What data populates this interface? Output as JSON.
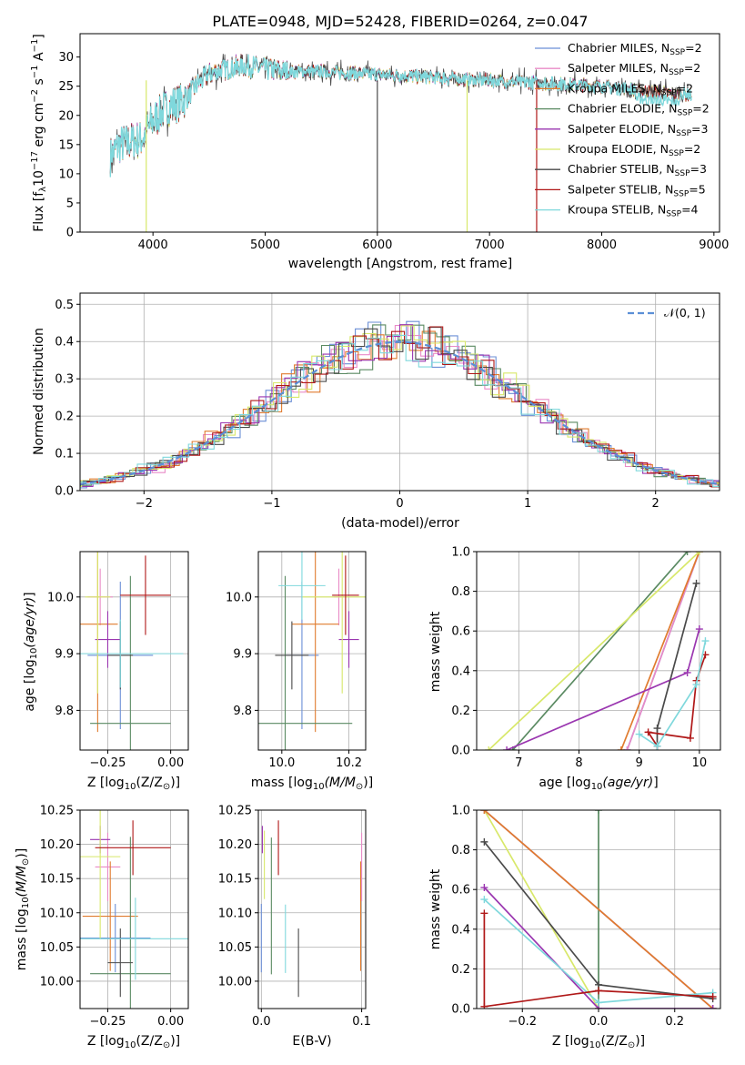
{
  "series_colors": [
    "#6b8fd6",
    "#e98bc7",
    "#e07b2e",
    "#5a8a62",
    "#9a36b0",
    "#d8e86a",
    "#4a4a4a",
    "#b01818",
    "#7fd8dc"
  ],
  "chart_data": [
    {
      "id": "spectrum",
      "type": "line",
      "title": "PLATE=0948, MJD=52428, FIBERID=0264, z=0.047",
      "xlabel": "wavelength [Angstrom, rest frame]",
      "ylabel": "Flux [f_λ 10^-17 erg cm^-2 s^-1 A^-1]",
      "xlim": [
        3350,
        9050
      ],
      "ylim": [
        0,
        34
      ],
      "xticks": [
        "4000",
        "5000",
        "6000",
        "7000",
        "8000",
        "9000"
      ],
      "yticks": [
        "0",
        "5",
        "10",
        "15",
        "20",
        "25",
        "30"
      ],
      "grid": false,
      "legend_position": "top-right",
      "legend": [
        {
          "label": "Chabrier MILES, N",
          "sub": "SSP",
          "tail": "=2"
        },
        {
          "label": "Salpeter MILES, N",
          "sub": "SSP",
          "tail": "=2"
        },
        {
          "label": "Kroupa MILES, N",
          "sub": "SSP",
          "tail": "=2"
        },
        {
          "label": "Chabrier ELODIE, N",
          "sub": "SSP",
          "tail": "=2"
        },
        {
          "label": "Salpeter ELODIE, N",
          "sub": "SSP",
          "tail": "=3"
        },
        {
          "label": "Kroupa ELODIE, N",
          "sub": "SSP",
          "tail": "=2"
        },
        {
          "label": "Chabrier STELIB, N",
          "sub": "SSP",
          "tail": "=3"
        },
        {
          "label": "Salpeter STELIB, N",
          "sub": "SSP",
          "tail": "=5"
        },
        {
          "label": "Kroupa STELIB, N",
          "sub": "SSP",
          "tail": "=4"
        }
      ],
      "continuum": {
        "x": [
          3620,
          3700,
          3800,
          3900,
          4000,
          4100,
          4200,
          4300,
          4400,
          4500,
          4600,
          4800,
          5000,
          5200,
          5500,
          6000,
          6500,
          7000,
          7500,
          8000,
          8500,
          8800
        ],
        "y": [
          13,
          15,
          15.5,
          16,
          19,
          21,
          22,
          23,
          25.5,
          27,
          27.8,
          28.5,
          28,
          27.5,
          27.5,
          27,
          26.5,
          26,
          25.5,
          25,
          24,
          23.5
        ]
      }
    },
    {
      "id": "residual-histogram",
      "type": "histogram",
      "xlabel": "(data-model)/error",
      "ylabel": "Normed distribution",
      "xlim": [
        -2.5,
        2.5
      ],
      "ylim": [
        0,
        0.53
      ],
      "xticks": [
        "-2",
        "-1",
        "0",
        "1",
        "2"
      ],
      "yticks": [
        "0.0",
        "0.1",
        "0.2",
        "0.3",
        "0.4",
        "0.5"
      ],
      "grid": true,
      "legend": [
        "N(0,1)"
      ],
      "legend_position": "top-right",
      "reference_curve": "gaussian mean 0 sigma 1"
    },
    {
      "id": "age-vs-metallicity",
      "type": "scatter",
      "xlabel": "Z [log10(Z/Z⊙)]",
      "ylabel": "age [log10(age/yr)]",
      "xlim": [
        -0.36,
        0.07
      ],
      "ylim": [
        9.73,
        10.08
      ],
      "xticks": [
        "-0.25",
        "0.00"
      ],
      "yticks": [
        "9.8",
        "9.9",
        "10.0"
      ],
      "grid": true,
      "points": [
        {
          "series": 0,
          "x": -0.2,
          "xerr": 0.13,
          "y": 9.897,
          "yerr": 0.13
        },
        {
          "series": 1,
          "x": -0.28,
          "xerr": 0.05,
          "y": 10.0,
          "yerr": 0.05
        },
        {
          "series": 2,
          "x": -0.29,
          "xerr": 0.08,
          "y": 9.952,
          "yerr": 0.19
        },
        {
          "series": 3,
          "x": -0.16,
          "xerr": 0.16,
          "y": 9.777,
          "yerr": 0.26
        },
        {
          "series": 4,
          "x": -0.25,
          "xerr": 0.05,
          "y": 9.925,
          "yerr": 0.05
        },
        {
          "series": 5,
          "x": -0.29,
          "xerr": 0.05,
          "y": 10.0,
          "yerr": 0.17
        },
        {
          "series": 6,
          "x": -0.2,
          "xerr": 0.05,
          "y": 9.897,
          "yerr": 0.06
        },
        {
          "series": 7,
          "x": -0.1,
          "xerr": 0.1,
          "y": 10.003,
          "yerr": 0.07
        },
        {
          "series": 8,
          "x": -0.2,
          "xerr": 0.25,
          "y": 9.9,
          "yerr": 0.06
        }
      ]
    },
    {
      "id": "age-vs-mass",
      "type": "scatter",
      "xlabel": "mass [log10(M/M⊙)]",
      "xlim": [
        9.93,
        10.25
      ],
      "ylim": [
        9.73,
        10.08
      ],
      "xticks": [
        "10.0",
        "10.2"
      ],
      "yticks": [
        "9.8",
        "9.9",
        "10.0"
      ],
      "grid": true,
      "points": [
        {
          "series": 0,
          "x": 10.06,
          "xerr": 0.05,
          "y": 9.897,
          "yerr": 0.13
        },
        {
          "series": 1,
          "x": 10.17,
          "xerr": 0.015,
          "y": 10.0,
          "yerr": 0.05
        },
        {
          "series": 2,
          "x": 10.1,
          "xerr": 0.07,
          "y": 9.952,
          "yerr": 0.19
        },
        {
          "series": 3,
          "x": 10.01,
          "xerr": 0.2,
          "y": 9.777,
          "yerr": 0.26
        },
        {
          "series": 4,
          "x": 10.2,
          "xerr": 0.03,
          "y": 9.925,
          "yerr": 0.05
        },
        {
          "series": 5,
          "x": 10.18,
          "xerr": 0.12,
          "y": 10.0,
          "yerr": 0.17
        },
        {
          "series": 6,
          "x": 10.03,
          "xerr": 0.05,
          "y": 9.897,
          "yerr": 0.06
        },
        {
          "series": 7,
          "x": 10.19,
          "xerr": 0.04,
          "y": 10.003,
          "yerr": 0.07
        },
        {
          "series": 8,
          "x": 10.06,
          "xerr": 0.07,
          "y": 10.02,
          "yerr": 0.06
        }
      ]
    },
    {
      "id": "mass-weight-vs-age",
      "type": "line",
      "xlabel": "age [log10(age/yr)]",
      "ylabel": "mass weight",
      "xlim": [
        6.3,
        10.35
      ],
      "ylim": [
        0,
        1.0
      ],
      "xticks": [
        "7",
        "8",
        "9",
        "10"
      ],
      "yticks": [
        "0.0",
        "0.2",
        "0.4",
        "0.6",
        "0.8",
        "1.0"
      ],
      "grid": true,
      "series": [
        {
          "color": 0,
          "x": [
            8.8,
            10.0
          ],
          "y": [
            0.0,
            1.0
          ]
        },
        {
          "color": 1,
          "x": [
            8.8,
            10.0
          ],
          "y": [
            0.0,
            1.0
          ]
        },
        {
          "color": 2,
          "x": [
            8.7,
            10.0
          ],
          "y": [
            0.0,
            1.0
          ]
        },
        {
          "color": 3,
          "x": [
            6.9,
            9.8
          ],
          "y": [
            0.0,
            1.0
          ]
        },
        {
          "color": 4,
          "x": [
            6.8,
            9.8,
            10.0
          ],
          "y": [
            0.0,
            0.39,
            0.61
          ]
        },
        {
          "color": 5,
          "x": [
            6.5,
            10.0
          ],
          "y": [
            0.0,
            1.0
          ]
        },
        {
          "color": 6,
          "x": [
            9.3,
            9.3,
            9.95
          ],
          "y": [
            0.02,
            0.11,
            0.84
          ]
        },
        {
          "color": 7,
          "x": [
            9.3,
            9.15,
            9.85,
            9.95,
            10.1
          ],
          "y": [
            0.02,
            0.09,
            0.06,
            0.35,
            0.48
          ]
        },
        {
          "color": 8,
          "x": [
            9.0,
            9.3,
            9.95,
            10.1
          ],
          "y": [
            0.08,
            0.02,
            0.33,
            0.55
          ]
        }
      ]
    },
    {
      "id": "mass-vs-metallicity",
      "type": "scatter",
      "xlabel": "Z [log10(Z/Z⊙)]",
      "ylabel": "mass [log10(M/M⊙)]",
      "xlim": [
        -0.36,
        0.07
      ],
      "ylim": [
        9.96,
        10.25
      ],
      "xticks": [
        "-0.25",
        "0.00"
      ],
      "yticks": [
        "10.00",
        "10.05",
        "10.10",
        "10.15",
        "10.20",
        "10.25"
      ],
      "grid": true,
      "points": [
        {
          "series": 0,
          "x": -0.22,
          "xerr": 0.14,
          "y": 10.063,
          "yerr": 0.05
        },
        {
          "series": 1,
          "x": -0.25,
          "xerr": 0.05,
          "y": 10.167,
          "yerr": 0.05
        },
        {
          "series": 2,
          "x": -0.24,
          "xerr": 0.11,
          "y": 10.095,
          "yerr": 0.08
        },
        {
          "series": 3,
          "x": -0.16,
          "xerr": 0.16,
          "y": 10.011,
          "yerr": 0.2
        },
        {
          "series": 4,
          "x": -0.28,
          "xerr": 0.04,
          "y": 10.207,
          "yerr": 0.02
        },
        {
          "series": 5,
          "x": -0.28,
          "xerr": 0.08,
          "y": 10.182,
          "yerr": 0.12
        },
        {
          "series": 6,
          "x": -0.2,
          "xerr": 0.05,
          "y": 10.027,
          "yerr": 0.05
        },
        {
          "series": 7,
          "x": -0.15,
          "xerr": 0.15,
          "y": 10.195,
          "yerr": 0.04
        },
        {
          "series": 8,
          "x": -0.14,
          "xerr": 0.22,
          "y": 10.062,
          "yerr": 0.06
        }
      ]
    },
    {
      "id": "mass-vs-ebv",
      "type": "scatter",
      "xlabel": "E(B-V)",
      "xlim": [
        -0.003,
        0.104
      ],
      "ylim": [
        9.96,
        10.25
      ],
      "xticks": [
        "0.0",
        "0.1"
      ],
      "yticks": [
        "10.00",
        "10.05",
        "10.10",
        "10.15",
        "10.20",
        "10.25"
      ],
      "grid": true,
      "points": [
        {
          "series": 0,
          "x": 0.0,
          "y": 10.063,
          "yerr": 0.05
        },
        {
          "series": 1,
          "x": 0.1,
          "y": 10.167,
          "yerr": 0.05
        },
        {
          "series": 2,
          "x": 0.099,
          "y": 10.095,
          "yerr": 0.08
        },
        {
          "series": 3,
          "x": 0.01,
          "y": 10.11,
          "yerr": 0.1
        },
        {
          "series": 4,
          "x": 0.001,
          "y": 10.207,
          "yerr": 0.02
        },
        {
          "series": 5,
          "x": 0.003,
          "y": 10.17,
          "yerr": 0.05
        },
        {
          "series": 6,
          "x": 0.037,
          "y": 10.027,
          "yerr": 0.05
        },
        {
          "series": 7,
          "x": 0.017,
          "y": 10.195,
          "yerr": 0.04
        },
        {
          "series": 8,
          "x": 0.024,
          "y": 10.062,
          "yerr": 0.05
        }
      ]
    },
    {
      "id": "mass-weight-vs-metallicity",
      "type": "line",
      "xlabel": "Z [log10(Z/Z⊙)]",
      "ylabel": "mass weight",
      "xlim": [
        -0.32,
        0.32
      ],
      "ylim": [
        0,
        1.0
      ],
      "xticks": [
        "-0.2",
        "0.0",
        "0.2"
      ],
      "yticks": [
        "0.0",
        "0.2",
        "0.4",
        "0.6",
        "0.8",
        "1.0"
      ],
      "grid": true,
      "series": [
        {
          "color": 3,
          "x": [
            0.0,
            0.0
          ],
          "y": [
            0.0,
            1.0
          ]
        },
        {
          "color": 5,
          "x": [
            -0.3,
            0.0
          ],
          "y": [
            1.0,
            0.0
          ]
        },
        {
          "color": 0,
          "x": [
            -0.3,
            0.3
          ],
          "y": [
            1.0,
            0.0
          ]
        },
        {
          "color": 1,
          "x": [
            -0.3,
            0.3
          ],
          "y": [
            1.0,
            0.0
          ]
        },
        {
          "color": 2,
          "x": [
            -0.3,
            0.3
          ],
          "y": [
            1.0,
            0.0
          ]
        },
        {
          "color": 6,
          "x": [
            -0.3,
            0.0,
            0.3
          ],
          "y": [
            0.84,
            0.12,
            0.05
          ]
        },
        {
          "color": 4,
          "x": [
            -0.3,
            0.0,
            0.3
          ],
          "y": [
            0.61,
            0.0,
            0.0
          ]
        },
        {
          "color": 8,
          "x": [
            -0.3,
            0.0,
            0.3
          ],
          "y": [
            0.55,
            0.03,
            0.08
          ]
        },
        {
          "color": 7,
          "x": [
            -0.3,
            -0.3,
            0.0,
            0.3
          ],
          "y": [
            0.48,
            0.01,
            0.09,
            0.06
          ]
        }
      ]
    }
  ]
}
